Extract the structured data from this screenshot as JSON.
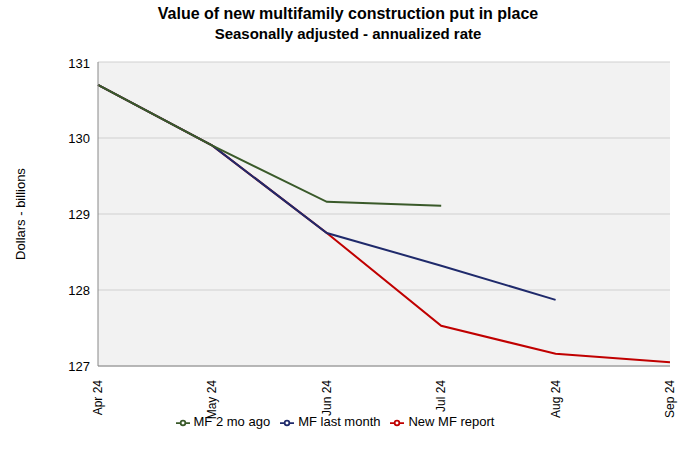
{
  "chart_data": {
    "type": "line",
    "title": "Value of new multifamily construction put in place",
    "subtitle": "Seasonally adjusted - annualized rate",
    "y_label": "Dollars - billions",
    "categories": [
      "Apr 24",
      "May 24",
      "Jun 24",
      "Jul 24",
      "Aug 24",
      "Sep 24"
    ],
    "series": [
      {
        "name": "New MF report",
        "color": "#c00000",
        "values": [
          130.7,
          129.9,
          128.75,
          127.53,
          127.16,
          127.05
        ]
      },
      {
        "name": "MF last month",
        "color": "#1f2a6b",
        "values": [
          130.7,
          129.9,
          128.75,
          128.32,
          127.87,
          null
        ]
      },
      {
        "name": "MF 2 mo ago",
        "color": "#3a5a2a",
        "values": [
          130.7,
          129.9,
          129.16,
          129.11,
          null,
          null
        ]
      }
    ],
    "ylim": [
      127,
      131
    ],
    "yticks": [
      127,
      128,
      129,
      130,
      131
    ],
    "grid": true,
    "legend": "bottom"
  }
}
